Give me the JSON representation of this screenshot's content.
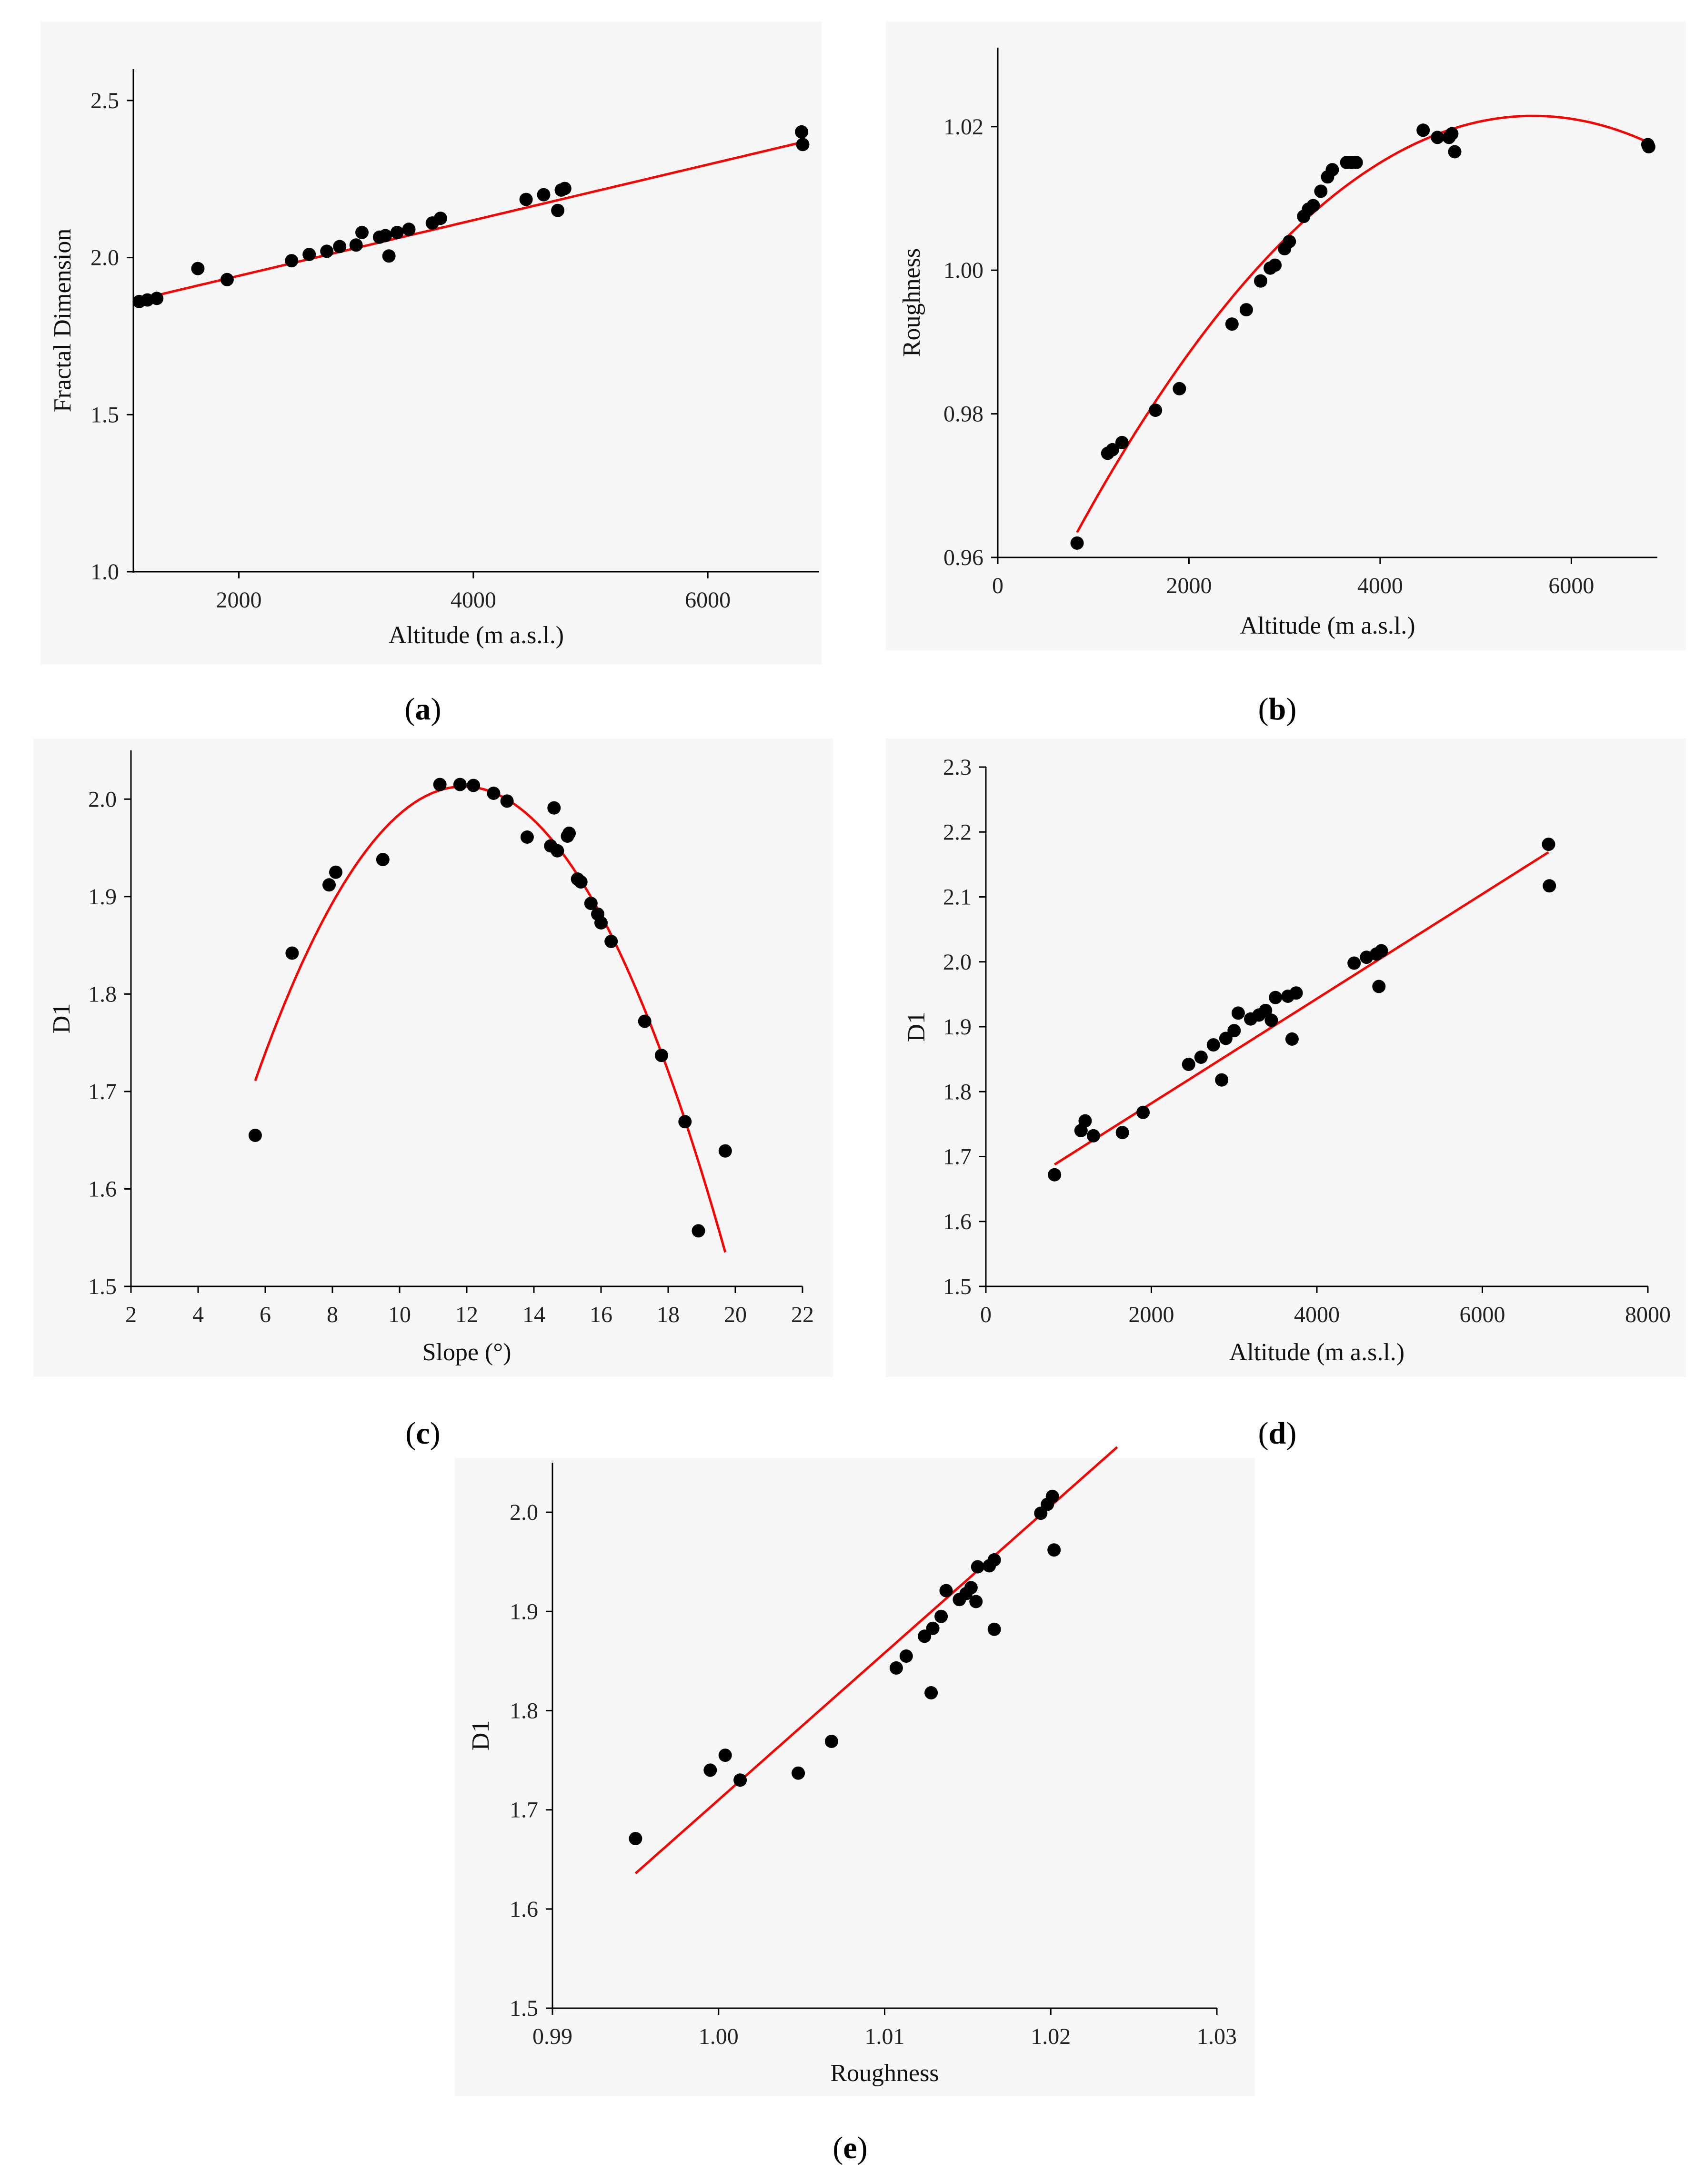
{
  "colors": {
    "points": "#000000",
    "fit_line": "#ff0000",
    "panel_background": "#f7f7f7"
  },
  "chart_data": [
    {
      "id": "a",
      "type": "scatter",
      "caption": "(a)",
      "caption_letter": "a",
      "xlabel": "Altitude (m a.s.l.)",
      "ylabel": "Fractal Dimension",
      "xlim": [
        1100,
        6950
      ],
      "ylim": [
        1.0,
        2.6
      ],
      "xticks": [
        2000,
        4000,
        6000
      ],
      "xtick_labels": [
        "2000",
        "4000",
        "6000"
      ],
      "yticks": [
        1.0,
        1.5,
        2.0,
        2.5
      ],
      "ytick_labels": [
        "1.0",
        "1.5",
        "2.0",
        "2.5"
      ],
      "fit": {
        "type": "linear",
        "x_range": [
          1100,
          6800
        ],
        "coef": [
          1.765,
          8.85e-05
        ]
      },
      "points": [
        [
          1150,
          1.86
        ],
        [
          1220,
          1.865
        ],
        [
          1300,
          1.87
        ],
        [
          1650,
          1.965
        ],
        [
          1900,
          1.93
        ],
        [
          2450,
          1.99
        ],
        [
          2600,
          2.01
        ],
        [
          2750,
          2.02
        ],
        [
          2860,
          2.035
        ],
        [
          3000,
          2.04
        ],
        [
          3050,
          2.08
        ],
        [
          3200,
          2.065
        ],
        [
          3250,
          2.07
        ],
        [
          3280,
          2.005
        ],
        [
          3350,
          2.08
        ],
        [
          3450,
          2.09
        ],
        [
          3650,
          2.11
        ],
        [
          3720,
          2.125
        ],
        [
          4450,
          2.185
        ],
        [
          4600,
          2.2
        ],
        [
          4720,
          2.15
        ],
        [
          4750,
          2.215
        ],
        [
          4780,
          2.22
        ],
        [
          6800,
          2.4
        ],
        [
          6810,
          2.36
        ]
      ]
    },
    {
      "id": "b",
      "type": "scatter",
      "caption": "(b)",
      "caption_letter": "b",
      "xlabel": "Altitude (m a.s.l.)",
      "ylabel": "Roughness",
      "xlim": [
        0,
        6900
      ],
      "ylim": [
        0.96,
        1.031
      ],
      "xticks": [
        0,
        2000,
        4000,
        6000
      ],
      "xtick_labels": [
        "0",
        "2000",
        "4000",
        "6000"
      ],
      "yticks": [
        0.96,
        0.98,
        1.0,
        1.02
      ],
      "ytick_labels": [
        "0.96",
        "0.98",
        "1.00",
        "1.02"
      ],
      "fit": {
        "type": "quadratic",
        "x_range": [
          830,
          6800
        ],
        "vertex": [
          5600,
          1.0215
        ],
        "point": [
          830,
          0.9635
        ]
      },
      "points": [
        [
          830,
          0.962
        ],
        [
          1150,
          0.9745
        ],
        [
          1200,
          0.975
        ],
        [
          1300,
          0.976
        ],
        [
          1650,
          0.9805
        ],
        [
          1900,
          0.9835
        ],
        [
          2450,
          0.9925
        ],
        [
          2600,
          0.9945
        ],
        [
          2750,
          0.9985
        ],
        [
          2850,
          1.0003
        ],
        [
          2900,
          1.0007
        ],
        [
          3000,
          1.003
        ],
        [
          3050,
          1.004
        ],
        [
          3200,
          1.0075
        ],
        [
          3250,
          1.0085
        ],
        [
          3300,
          1.009
        ],
        [
          3380,
          1.011
        ],
        [
          3450,
          1.013
        ],
        [
          3500,
          1.014
        ],
        [
          3650,
          1.015
        ],
        [
          3700,
          1.015
        ],
        [
          3750,
          1.015
        ],
        [
          4450,
          1.0195
        ],
        [
          4600,
          1.0185
        ],
        [
          4720,
          1.0185
        ],
        [
          4750,
          1.019
        ],
        [
          4780,
          1.0165
        ],
        [
          6800,
          1.0175
        ],
        [
          6810,
          1.0172
        ]
      ]
    },
    {
      "id": "c",
      "type": "scatter",
      "caption": "(c)",
      "caption_letter": "c",
      "xlabel": "Slope (°)",
      "ylabel": "D1",
      "xlim": [
        2,
        22
      ],
      "ylim": [
        1.5,
        2.05
      ],
      "xticks": [
        2,
        4,
        6,
        8,
        10,
        12,
        14,
        16,
        18,
        20,
        22
      ],
      "xtick_labels": [
        "2",
        "4",
        "6",
        "8",
        "10",
        "12",
        "14",
        "16",
        "18",
        "20",
        "22"
      ],
      "yticks": [
        1.5,
        1.6,
        1.7,
        1.8,
        1.9,
        2.0
      ],
      "ytick_labels": [
        "1.5",
        "1.6",
        "1.7",
        "1.8",
        "1.9",
        "2.0"
      ],
      "fit": {
        "type": "quadratic",
        "x_range": [
          5.7,
          19.7
        ],
        "vertex": [
          11.9,
          2.013
        ],
        "point": [
          19.7,
          1.535
        ]
      },
      "points": [
        [
          5.7,
          1.655
        ],
        [
          6.8,
          1.842
        ],
        [
          7.9,
          1.912
        ],
        [
          8.1,
          1.925
        ],
        [
          9.5,
          1.938
        ],
        [
          11.2,
          2.015
        ],
        [
          11.8,
          2.015
        ],
        [
          12.2,
          2.014
        ],
        [
          12.8,
          2.006
        ],
        [
          13.2,
          1.998
        ],
        [
          13.8,
          1.961
        ],
        [
          14.5,
          1.952
        ],
        [
          14.6,
          1.991
        ],
        [
          14.7,
          1.947
        ],
        [
          15.0,
          1.962
        ],
        [
          15.05,
          1.965
        ],
        [
          15.3,
          1.918
        ],
        [
          15.4,
          1.915
        ],
        [
          15.7,
          1.893
        ],
        [
          15.9,
          1.882
        ],
        [
          16.0,
          1.873
        ],
        [
          16.3,
          1.854
        ],
        [
          17.3,
          1.772
        ],
        [
          17.8,
          1.737
        ],
        [
          18.5,
          1.669
        ],
        [
          18.9,
          1.557
        ],
        [
          19.7,
          1.639
        ]
      ]
    },
    {
      "id": "d",
      "type": "scatter",
      "caption": "(d)",
      "caption_letter": "d",
      "xlabel": "Altitude (m a.s.l.)",
      "ylabel": "D1",
      "xlim": [
        0,
        8000
      ],
      "ylim": [
        1.5,
        2.3
      ],
      "xticks": [
        0,
        2000,
        4000,
        6000,
        8000
      ],
      "xtick_labels": [
        "0",
        "2000",
        "4000",
        "6000",
        "8000"
      ],
      "yticks": [
        1.5,
        1.6,
        1.7,
        1.8,
        1.9,
        2.0,
        2.1,
        2.2,
        2.3
      ],
      "ytick_labels": [
        "1.5",
        "1.6",
        "1.7",
        "1.8",
        "1.9",
        "2.0",
        "2.1",
        "2.2",
        "2.3"
      ],
      "fit": {
        "type": "linear",
        "x_range": [
          830,
          6800
        ],
        "coef": [
          1.6208,
          8.06e-05
        ]
      },
      "points": [
        [
          830,
          1.672
        ],
        [
          1150,
          1.74
        ],
        [
          1200,
          1.755
        ],
        [
          1300,
          1.732
        ],
        [
          1650,
          1.737
        ],
        [
          1900,
          1.768
        ],
        [
          2450,
          1.842
        ],
        [
          2600,
          1.853
        ],
        [
          2750,
          1.872
        ],
        [
          2850,
          1.818
        ],
        [
          2900,
          1.882
        ],
        [
          3000,
          1.894
        ],
        [
          3050,
          1.921
        ],
        [
          3200,
          1.912
        ],
        [
          3300,
          1.918
        ],
        [
          3380,
          1.925
        ],
        [
          3450,
          1.91
        ],
        [
          3500,
          1.945
        ],
        [
          3650,
          1.947
        ],
        [
          3700,
          1.881
        ],
        [
          3750,
          1.952
        ],
        [
          4450,
          1.998
        ],
        [
          4600,
          2.007
        ],
        [
          4720,
          2.012
        ],
        [
          4750,
          1.962
        ],
        [
          4780,
          2.017
        ],
        [
          6800,
          2.181
        ],
        [
          6810,
          2.117
        ]
      ]
    },
    {
      "id": "e",
      "type": "scatter",
      "caption": "(e)",
      "caption_letter": "e",
      "xlabel": "Roughness",
      "ylabel": "D1",
      "xlim": [
        0.99,
        1.03
      ],
      "ylim": [
        1.5,
        2.05
      ],
      "xticks": [
        0.99,
        1.0,
        1.01,
        1.02,
        1.03
      ],
      "xtick_labels": [
        "0.99",
        "1.00",
        "1.01",
        "1.02",
        "1.03"
      ],
      "yticks": [
        1.5,
        1.6,
        1.7,
        1.8,
        1.9,
        2.0
      ],
      "ytick_labels": [
        "1.5",
        "1.6",
        "1.7",
        "1.8",
        "1.9",
        "2.0"
      ],
      "fit": {
        "type": "linear",
        "x_range": [
          0.995,
          1.024
        ],
        "coef": [
          -13.11,
          14.82
        ]
      },
      "points": [
        [
          0.995,
          1.671
        ],
        [
          0.9995,
          1.74
        ],
        [
          1.0004,
          1.755
        ],
        [
          1.0013,
          1.73
        ],
        [
          1.0048,
          1.737
        ],
        [
          1.0068,
          1.769
        ],
        [
          1.0107,
          1.843
        ],
        [
          1.0113,
          1.855
        ],
        [
          1.0124,
          1.875
        ],
        [
          1.0128,
          1.818
        ],
        [
          1.0129,
          1.883
        ],
        [
          1.0134,
          1.895
        ],
        [
          1.0137,
          1.921
        ],
        [
          1.0145,
          1.912
        ],
        [
          1.0149,
          1.918
        ],
        [
          1.0152,
          1.924
        ],
        [
          1.0155,
          1.91
        ],
        [
          1.0156,
          1.945
        ],
        [
          1.0163,
          1.946
        ],
        [
          1.0166,
          1.952
        ],
        [
          1.0166,
          1.882
        ],
        [
          1.0194,
          1.999
        ],
        [
          1.0198,
          2.008
        ],
        [
          1.0201,
          2.016
        ],
        [
          1.0202,
          1.962
        ]
      ]
    }
  ]
}
